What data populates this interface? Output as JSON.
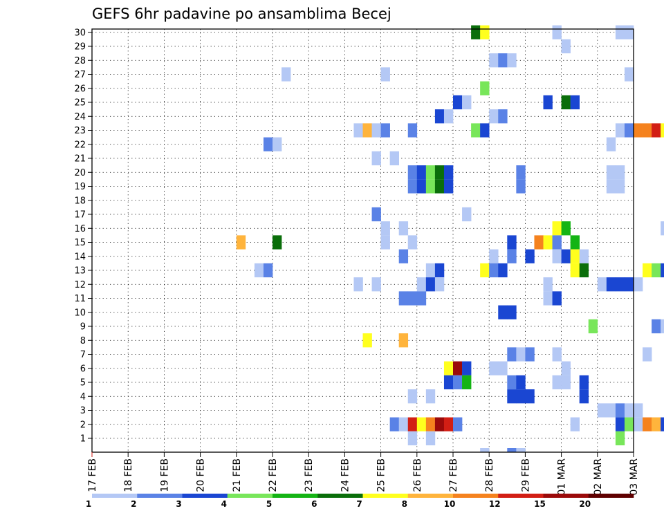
{
  "chart_data": {
    "type": "heatmap",
    "title": "GEFS 6hr padavine po ansamblima Becej",
    "members": [
      1,
      2,
      3,
      4,
      5,
      6,
      7,
      8,
      9,
      10,
      11,
      12,
      13,
      14,
      15,
      16,
      17,
      18,
      19,
      20,
      21,
      22,
      23,
      24,
      25,
      26,
      27,
      28,
      29,
      30
    ],
    "x_tick_labels": [
      "17 FEB",
      "18 FEB",
      "19 FEB",
      "20 FEB",
      "21 FEB",
      "22 FEB",
      "23 FEB",
      "24 FEB",
      "25 FEB",
      "26 FEB",
      "27 FEB",
      "28 FEB",
      "29 FEB",
      "01 MAR",
      "02 MAR",
      "03 MAR"
    ],
    "steps_per_day": 4,
    "total_steps": 60,
    "grid": true,
    "legend_placement": "bottom",
    "color_scale": {
      "labels": [
        "1",
        "2",
        "3",
        "4",
        "5",
        "6",
        "7",
        "8",
        "10",
        "12",
        "15",
        "20"
      ],
      "colors": [
        "#b4c8f5",
        "#5a82e6",
        "#1a46d2",
        "#1a46d2",
        "#78e65a",
        "#14b414",
        "#0a6e0a",
        "#ffff1e",
        "#ffb43c",
        "#f5821e",
        "#d21e14",
        "#9b0a0a",
        "#5f0000"
      ]
    },
    "cells": [
      [
        30,
        42,
        7
      ],
      [
        30,
        43,
        8
      ],
      [
        30,
        51,
        1
      ],
      [
        30,
        58,
        1
      ],
      [
        30,
        59,
        1
      ],
      [
        29,
        52,
        1
      ],
      [
        28,
        44,
        1
      ],
      [
        28,
        45,
        2
      ],
      [
        28,
        46,
        1
      ],
      [
        28,
        66,
        1
      ],
      [
        28,
        67,
        5
      ],
      [
        27,
        21,
        1
      ],
      [
        27,
        32,
        1
      ],
      [
        27,
        59,
        1
      ],
      [
        26,
        43,
        5
      ],
      [
        25,
        40,
        3
      ],
      [
        25,
        41,
        1
      ],
      [
        25,
        50,
        4
      ],
      [
        25,
        52,
        7
      ],
      [
        25,
        53,
        3
      ],
      [
        24,
        38,
        3
      ],
      [
        24,
        39,
        1
      ],
      [
        24,
        44,
        1
      ],
      [
        24,
        45,
        2
      ],
      [
        24,
        66,
        1
      ],
      [
        24,
        67,
        6
      ],
      [
        23,
        29,
        1
      ],
      [
        23,
        30,
        9
      ],
      [
        23,
        31,
        1
      ],
      [
        23,
        32,
        2
      ],
      [
        23,
        35,
        2
      ],
      [
        23,
        42,
        5
      ],
      [
        23,
        43,
        4
      ],
      [
        23,
        58,
        1
      ],
      [
        23,
        59,
        2
      ],
      [
        23,
        60,
        10
      ],
      [
        23,
        61,
        10
      ],
      [
        23,
        62,
        11
      ],
      [
        23,
        63,
        8
      ],
      [
        23,
        64,
        1
      ],
      [
        22,
        19,
        2
      ],
      [
        22,
        20,
        1
      ],
      [
        22,
        57,
        1
      ],
      [
        21,
        31,
        1
      ],
      [
        21,
        33,
        1
      ],
      [
        20,
        35,
        2
      ],
      [
        20,
        36,
        3
      ],
      [
        20,
        37,
        5
      ],
      [
        20,
        38,
        7
      ],
      [
        20,
        39,
        3
      ],
      [
        20,
        47,
        2
      ],
      [
        20,
        57,
        1
      ],
      [
        20,
        58,
        1
      ],
      [
        20,
        64,
        2
      ],
      [
        20,
        66,
        7
      ],
      [
        19,
        35,
        2
      ],
      [
        19,
        36,
        3
      ],
      [
        19,
        37,
        5
      ],
      [
        19,
        38,
        7
      ],
      [
        19,
        39,
        3
      ],
      [
        19,
        47,
        2
      ],
      [
        19,
        57,
        1
      ],
      [
        19,
        58,
        1
      ],
      [
        19,
        64,
        1
      ],
      [
        19,
        66,
        7
      ],
      [
        18,
        64,
        1
      ],
      [
        17,
        31,
        2
      ],
      [
        17,
        41,
        1
      ],
      [
        16,
        32,
        1
      ],
      [
        16,
        34,
        1
      ],
      [
        16,
        51,
        8
      ],
      [
        16,
        52,
        6
      ],
      [
        16,
        63,
        1
      ],
      [
        16,
        65,
        2
      ],
      [
        16,
        66,
        1
      ],
      [
        15,
        16,
        9
      ],
      [
        15,
        20,
        7
      ],
      [
        15,
        32,
        1
      ],
      [
        15,
        35,
        1
      ],
      [
        15,
        46,
        4
      ],
      [
        15,
        49,
        10
      ],
      [
        15,
        50,
        8
      ],
      [
        15,
        51,
        2
      ],
      [
        15,
        53,
        6
      ],
      [
        14,
        34,
        2
      ],
      [
        14,
        44,
        1
      ],
      [
        14,
        46,
        2
      ],
      [
        14,
        48,
        3
      ],
      [
        14,
        51,
        1
      ],
      [
        14,
        52,
        3
      ],
      [
        14,
        53,
        8
      ],
      [
        14,
        54,
        1
      ],
      [
        13,
        18,
        1
      ],
      [
        13,
        19,
        2
      ],
      [
        13,
        37,
        1
      ],
      [
        13,
        38,
        3
      ],
      [
        13,
        43,
        8
      ],
      [
        13,
        44,
        2
      ],
      [
        13,
        45,
        4
      ],
      [
        13,
        53,
        8
      ],
      [
        13,
        54,
        7
      ],
      [
        13,
        61,
        8
      ],
      [
        13,
        62,
        5
      ],
      [
        13,
        63,
        3
      ],
      [
        13,
        64,
        6
      ],
      [
        13,
        65,
        2
      ],
      [
        13,
        66,
        1
      ],
      [
        13,
        67,
        2
      ],
      [
        12,
        29,
        1
      ],
      [
        12,
        31,
        1
      ],
      [
        12,
        36,
        1
      ],
      [
        12,
        37,
        3
      ],
      [
        12,
        38,
        1
      ],
      [
        12,
        50,
        1
      ],
      [
        12,
        56,
        1
      ],
      [
        12,
        57,
        3
      ],
      [
        12,
        58,
        3
      ],
      [
        12,
        59,
        3
      ],
      [
        12,
        60,
        1
      ],
      [
        11,
        34,
        2
      ],
      [
        11,
        35,
        2
      ],
      [
        11,
        36,
        2
      ],
      [
        11,
        50,
        1
      ],
      [
        11,
        51,
        3
      ],
      [
        10,
        45,
        3
      ],
      [
        10,
        46,
        4
      ],
      [
        9,
        55,
        5
      ],
      [
        9,
        62,
        2
      ],
      [
        9,
        63,
        1
      ],
      [
        9,
        67,
        1
      ],
      [
        8,
        30,
        8
      ],
      [
        8,
        34,
        9
      ],
      [
        7,
        46,
        2
      ],
      [
        7,
        47,
        1
      ],
      [
        7,
        48,
        2
      ],
      [
        7,
        51,
        1
      ],
      [
        7,
        61,
        1
      ],
      [
        6,
        39,
        8
      ],
      [
        6,
        40,
        12
      ],
      [
        6,
        41,
        3
      ],
      [
        6,
        44,
        1
      ],
      [
        6,
        45,
        1
      ],
      [
        6,
        52,
        1
      ],
      [
        5,
        39,
        4
      ],
      [
        5,
        40,
        2
      ],
      [
        5,
        41,
        6
      ],
      [
        5,
        46,
        2
      ],
      [
        5,
        47,
        3
      ],
      [
        5,
        51,
        1
      ],
      [
        5,
        52,
        1
      ],
      [
        5,
        54,
        3
      ],
      [
        4,
        35,
        1
      ],
      [
        4,
        37,
        1
      ],
      [
        4,
        46,
        4
      ],
      [
        4,
        47,
        4
      ],
      [
        4,
        48,
        4
      ],
      [
        4,
        54,
        3
      ],
      [
        3,
        56,
        1
      ],
      [
        3,
        57,
        1
      ],
      [
        3,
        58,
        2
      ],
      [
        3,
        59,
        1
      ],
      [
        3,
        60,
        1
      ],
      [
        3,
        67,
        1
      ],
      [
        2,
        33,
        2
      ],
      [
        2,
        34,
        1
      ],
      [
        2,
        35,
        11
      ],
      [
        2,
        36,
        8
      ],
      [
        2,
        37,
        10
      ],
      [
        2,
        38,
        12
      ],
      [
        2,
        39,
        11
      ],
      [
        2,
        40,
        2
      ],
      [
        2,
        53,
        1
      ],
      [
        2,
        58,
        3
      ],
      [
        2,
        59,
        5
      ],
      [
        2,
        60,
        1
      ],
      [
        2,
        61,
        10
      ],
      [
        2,
        62,
        9
      ],
      [
        2,
        63,
        3
      ],
      [
        2,
        64,
        2
      ],
      [
        2,
        65,
        1
      ],
      [
        1,
        35,
        1
      ],
      [
        1,
        37,
        1
      ],
      [
        1,
        58,
        5
      ],
      [
        0,
        43,
        1
      ],
      [
        0,
        46,
        2
      ],
      [
        0,
        47,
        1
      ],
      [
        0,
        66,
        1
      ]
    ]
  }
}
